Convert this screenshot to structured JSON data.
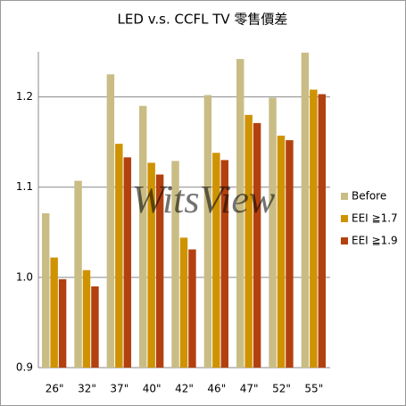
{
  "chart_data": {
    "type": "bar",
    "title": "LED v.s. CCFL TV 零售價差",
    "watermark": "WitsView",
    "categories": [
      "26\"",
      "32\"",
      "37\"",
      "40\"",
      "42\"",
      "46\"",
      "47\"",
      "52\"",
      "55\""
    ],
    "series": [
      {
        "name": "Before",
        "color": "#c9bd85",
        "values": [
          1.071,
          1.107,
          1.225,
          1.19,
          1.129,
          1.202,
          1.242,
          1.199,
          1.249
        ]
      },
      {
        "name": "EEI ≧1.7",
        "color": "#cf9200",
        "values": [
          1.022,
          1.008,
          1.148,
          1.127,
          1.044,
          1.138,
          1.18,
          1.157,
          1.208
        ]
      },
      {
        "name": "EEI ≧1.9",
        "color": "#b3410f",
        "values": [
          0.998,
          0.99,
          1.133,
          1.114,
          1.031,
          1.13,
          1.171,
          1.152,
          1.203
        ]
      }
    ],
    "ylim": [
      0.9,
      1.25
    ],
    "yticks": [
      0.9,
      {
        "value": 1.0,
        "label": "1.0"
      },
      1.1,
      1.2
    ],
    "grid": true,
    "legend": "right"
  }
}
